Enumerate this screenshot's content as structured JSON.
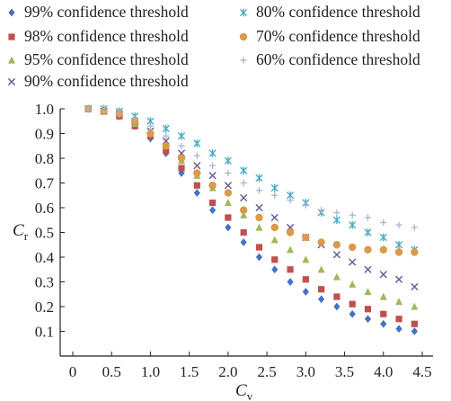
{
  "chart_data": {
    "type": "scatter",
    "xlabel": "C",
    "xlabel_sub": "v",
    "ylabel": "C",
    "ylabel_sub": "r",
    "xlim": [
      0,
      4.5
    ],
    "ylim": [
      0,
      1.0
    ],
    "xticks": [
      "0",
      "0.5",
      "1.0",
      "1.5",
      "2.0",
      "2.5",
      "3.0",
      "3.5",
      "4.0",
      "4.5"
    ],
    "yticks": [
      "0.1",
      "0.2",
      "0.3",
      "0.4",
      "0.5",
      "0.6",
      "0.7",
      "0.8",
      "0.9",
      "1.0"
    ],
    "grid": false,
    "legend": "top",
    "x": [
      0.2,
      0.4,
      0.6,
      0.8,
      1.0,
      1.2,
      1.4,
      1.6,
      1.8,
      2.0,
      2.2,
      2.4,
      2.6,
      2.8,
      3.0,
      3.2,
      3.4,
      3.6,
      3.8,
      4.0,
      4.2,
      4.4
    ],
    "series": [
      {
        "name": "99% confidence threshold",
        "marker": "diamond",
        "color": "#4472c4",
        "values": [
          1.0,
          0.99,
          0.97,
          0.93,
          0.88,
          0.82,
          0.74,
          0.66,
          0.59,
          0.52,
          0.46,
          0.4,
          0.35,
          0.3,
          0.26,
          0.23,
          0.2,
          0.17,
          0.15,
          0.13,
          0.11,
          0.1
        ]
      },
      {
        "name": "98% confidence threshold",
        "marker": "square",
        "color": "#c0504d",
        "values": [
          1.0,
          0.99,
          0.97,
          0.93,
          0.89,
          0.83,
          0.76,
          0.69,
          0.62,
          0.56,
          0.5,
          0.44,
          0.39,
          0.35,
          0.31,
          0.27,
          0.24,
          0.21,
          0.19,
          0.17,
          0.15,
          0.13
        ]
      },
      {
        "name": "95% confidence threshold",
        "marker": "triangle",
        "color": "#9bbb59",
        "values": [
          1.0,
          0.99,
          0.98,
          0.94,
          0.9,
          0.85,
          0.79,
          0.73,
          0.68,
          0.62,
          0.57,
          0.52,
          0.47,
          0.43,
          0.39,
          0.35,
          0.32,
          0.29,
          0.26,
          0.24,
          0.22,
          0.2
        ]
      },
      {
        "name": "90% confidence threshold",
        "marker": "x",
        "color": "#6b5b95",
        "values": [
          1.0,
          0.99,
          0.98,
          0.95,
          0.91,
          0.87,
          0.82,
          0.77,
          0.73,
          0.69,
          0.64,
          0.6,
          0.56,
          0.52,
          0.48,
          0.45,
          0.41,
          0.38,
          0.35,
          0.33,
          0.31,
          0.28
        ]
      },
      {
        "name": "80% confidence threshold",
        "marker": "star",
        "color": "#4bacc6",
        "values": [
          1.0,
          1.0,
          0.99,
          0.97,
          0.95,
          0.92,
          0.89,
          0.86,
          0.82,
          0.79,
          0.75,
          0.72,
          0.68,
          0.65,
          0.62,
          0.58,
          0.55,
          0.53,
          0.5,
          0.48,
          0.45,
          0.43
        ]
      },
      {
        "name": "70% confidence threshold",
        "marker": "circle",
        "color": "#d99b4a",
        "values": [
          1.0,
          0.99,
          0.98,
          0.95,
          0.9,
          0.85,
          0.8,
          0.74,
          0.69,
          0.66,
          0.59,
          0.56,
          0.52,
          0.5,
          0.48,
          0.46,
          0.45,
          0.44,
          0.43,
          0.43,
          0.42,
          0.42
        ]
      },
      {
        "name": "60% confidence threshold",
        "marker": "plus",
        "color": "#a9b4c8",
        "values": [
          1.0,
          0.99,
          0.98,
          0.96,
          0.93,
          0.89,
          0.85,
          0.81,
          0.77,
          0.74,
          0.7,
          0.67,
          0.65,
          0.63,
          0.61,
          0.59,
          0.58,
          0.57,
          0.56,
          0.54,
          0.53,
          0.52
        ]
      }
    ]
  }
}
